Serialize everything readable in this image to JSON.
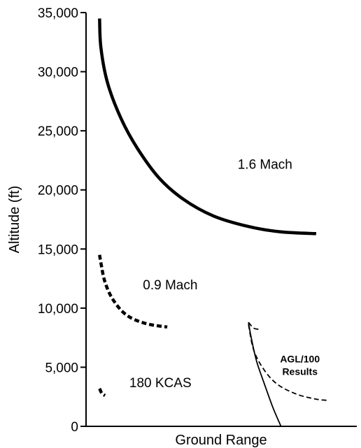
{
  "chart_data": {
    "type": "line",
    "xlabel": "Ground Range",
    "ylabel": "Altitude (ft)",
    "ylim": [
      0,
      35000
    ],
    "x_ticks_shown": false,
    "yticks": [
      {
        "value": 0,
        "label": "0"
      },
      {
        "value": 5000,
        "label": "5,000"
      },
      {
        "value": 10000,
        "label": "10,000"
      },
      {
        "value": 15000,
        "label": "15,000"
      },
      {
        "value": 20000,
        "label": "20,000"
      },
      {
        "value": 25000,
        "label": "25,000"
      },
      {
        "value": 30000,
        "label": "30,000"
      },
      {
        "value": 35000,
        "label": "35,000"
      }
    ],
    "grid": false,
    "legend": "none",
    "series": [
      {
        "name": "1.6 Mach",
        "style": "solid-thick",
        "label_anchor": {
          "x": 0.56,
          "y": 21800
        },
        "points": [
          [
            0.05,
            34500
          ],
          [
            0.055,
            32000
          ],
          [
            0.08,
            29000
          ],
          [
            0.13,
            26000
          ],
          [
            0.19,
            23500
          ],
          [
            0.27,
            21000
          ],
          [
            0.36,
            19200
          ],
          [
            0.47,
            17800
          ],
          [
            0.6,
            16900
          ],
          [
            0.72,
            16450
          ],
          [
            0.85,
            16300
          ]
        ]
      },
      {
        "name": "0.9 Mach",
        "style": "dashed-thick",
        "label_anchor": {
          "x": 0.21,
          "y": 11600
        },
        "points": [
          [
            0.05,
            14500
          ],
          [
            0.055,
            13800
          ],
          [
            0.07,
            12200
          ],
          [
            0.1,
            10700
          ],
          [
            0.15,
            9400
          ],
          [
            0.22,
            8700
          ],
          [
            0.3,
            8400
          ]
        ]
      },
      {
        "name": "180 KCAS",
        "style": "dashed-thick",
        "label_anchor": {
          "x": 0.16,
          "y": 3300
        },
        "points": [
          [
            0.05,
            3200
          ],
          [
            0.058,
            2800
          ],
          [
            0.07,
            2600
          ]
        ]
      },
      {
        "name": "",
        "style": "solid-thin",
        "points": [
          [
            0.6,
            8800
          ],
          [
            0.61,
            7500
          ],
          [
            0.63,
            5500
          ],
          [
            0.66,
            3500
          ],
          [
            0.69,
            1600
          ],
          [
            0.72,
            0
          ]
        ]
      },
      {
        "name": "",
        "style": "dashed-thin",
        "points": [
          [
            0.6,
            8600
          ],
          [
            0.62,
            6400
          ],
          [
            0.66,
            4700
          ],
          [
            0.71,
            3500
          ],
          [
            0.78,
            2700
          ],
          [
            0.85,
            2300
          ],
          [
            0.89,
            2200
          ]
        ]
      },
      {
        "name": "",
        "style": "dashed-thin",
        "points": [
          [
            0.6,
            8800
          ],
          [
            0.62,
            8300
          ],
          [
            0.645,
            8200
          ]
        ]
      }
    ],
    "annotations": [
      {
        "text_line1": "AGL/100",
        "text_line2": "Results",
        "anchor": {
          "x": 0.79,
          "y": 5400
        }
      }
    ]
  }
}
